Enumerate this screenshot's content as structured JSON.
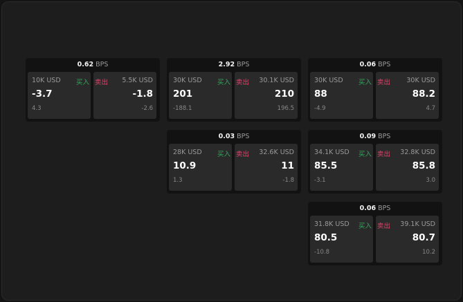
{
  "unit": "BPS",
  "buy_label": "买入",
  "sell_label": "卖出",
  "colors": {
    "buy": "#2faa5a",
    "sell": "#e0436b",
    "background": "#1d1d1d"
  },
  "cards": [
    {
      "spread": "0.62",
      "buy": {
        "size": "10K USD",
        "price": "-3.7",
        "change": "4.3"
      },
      "sell": {
        "size": "5.5K USD",
        "price": "-1.8",
        "change": "-2.6"
      }
    },
    {
      "spread": "2.92",
      "buy": {
        "size": "30K USD",
        "price": "201",
        "change": "-188.1"
      },
      "sell": {
        "size": "30.1K USD",
        "price": "210",
        "change": "196.5"
      }
    },
    {
      "spread": "0.06",
      "buy": {
        "size": "30K USD",
        "price": "88",
        "change": "-4.9"
      },
      "sell": {
        "size": "30K USD",
        "price": "88.2",
        "change": "4.7"
      }
    },
    {
      "spread": "0.03",
      "buy": {
        "size": "28K USD",
        "price": "10.9",
        "change": "1.3"
      },
      "sell": {
        "size": "32.6K USD",
        "price": "11",
        "change": "-1.8"
      }
    },
    {
      "spread": "0.09",
      "buy": {
        "size": "34.1K USD",
        "price": "85.5",
        "change": "-3.1"
      },
      "sell": {
        "size": "32.8K USD",
        "price": "85.8",
        "change": "3.0"
      }
    },
    {
      "spread": "0.06",
      "buy": {
        "size": "31.8K USD",
        "price": "80.5",
        "change": "-10.8"
      },
      "sell": {
        "size": "39.1K USD",
        "price": "80.7",
        "change": "10.2"
      }
    }
  ]
}
